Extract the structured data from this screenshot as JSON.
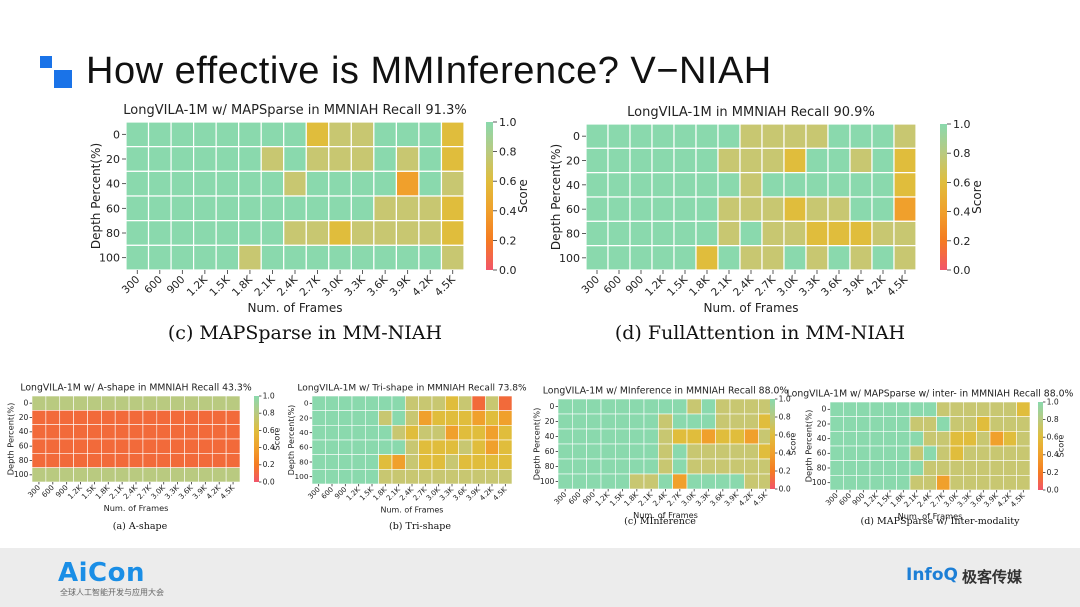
{
  "slide": {
    "title": "How effective is MMInference? V−NIAH",
    "footer_brand": "AiCon",
    "footer_brand_sub": "全球人工智能开发与应用大会",
    "footer_right_en": "InfoQ",
    "footer_right_cn": "极客传媒"
  },
  "colors": {
    "accent_blue": "#1a73e8",
    "green": "#8ad9ad",
    "olive": "#b9ca80",
    "khaki": "#c8c771",
    "gold": "#e0bd3c",
    "orange": "#f0a02c",
    "deep_orange": "#f57b22",
    "red_orange": "#f26a3a",
    "pink": "#f2556a",
    "red": "#f24d5a"
  },
  "chart_data": [
    {
      "type": "heatmap",
      "title": "LongVILA-1M w/ MAPSparse in MMNIAH Recall 91.3%",
      "caption": "(c) MAPSparse in MM-NIAH",
      "xlabel": "Num. of Frames",
      "ylabel": "Depth Percent(%)",
      "colorbar_label": "Score",
      "colorbar_ticks": [
        "1.0",
        "0.8",
        "0.6",
        "0.4",
        "0.2",
        "0.0"
      ],
      "vmin": 0,
      "vmax": 1,
      "x": [
        "300",
        "600",
        "900",
        "1.2K",
        "1.5K",
        "1.8K",
        "2.1K",
        "2.4K",
        "2.7K",
        "3.0K",
        "3.3K",
        "3.6K",
        "3.9K",
        "4.2K",
        "4.5K"
      ],
      "y": [
        "0",
        "20",
        "40",
        "60",
        "80",
        "100"
      ],
      "values": [
        [
          1,
          1,
          1,
          1,
          1,
          1,
          1,
          1,
          0.5,
          0.7,
          0.7,
          1,
          1,
          1,
          0.5
        ],
        [
          1,
          1,
          1,
          1,
          1,
          1,
          0.7,
          1,
          0.7,
          0.7,
          0.7,
          1,
          0.7,
          1,
          0.5
        ],
        [
          1,
          1,
          1,
          1,
          1,
          1,
          1,
          0.7,
          1,
          1,
          1,
          1,
          0.35,
          1,
          0.7
        ],
        [
          1,
          1,
          1,
          1,
          1,
          1,
          1,
          1,
          1,
          1,
          1,
          0.7,
          0.7,
          0.7,
          0.5
        ],
        [
          1,
          1,
          1,
          1,
          1,
          1,
          1,
          0.7,
          0.7,
          0.5,
          0.7,
          0.7,
          0.7,
          0.7,
          0.5
        ],
        [
          1,
          1,
          1,
          1,
          1,
          0.7,
          1,
          1,
          1,
          1,
          1,
          1,
          1,
          1,
          0.7
        ]
      ]
    },
    {
      "type": "heatmap",
      "title": "LongVILA-1M in MMNIAH Recall 90.9%",
      "caption": "(d) FullAttention in MM-NIAH",
      "xlabel": "Num. of Frames",
      "ylabel": "Depth Percent(%)",
      "colorbar_label": "Score",
      "colorbar_ticks": [
        "1.0",
        "0.8",
        "0.6",
        "0.4",
        "0.2",
        "0.0"
      ],
      "vmin": 0,
      "vmax": 1,
      "x": [
        "300",
        "600",
        "900",
        "1.2K",
        "1.5K",
        "1.8K",
        "2.1K",
        "2.4K",
        "2.7K",
        "3.0K",
        "3.3K",
        "3.6K",
        "3.9K",
        "4.2K",
        "4.5K"
      ],
      "y": [
        "0",
        "20",
        "40",
        "60",
        "80",
        "100"
      ],
      "values": [
        [
          1,
          1,
          1,
          1,
          1,
          1,
          1,
          0.7,
          0.7,
          0.7,
          0.7,
          1,
          1,
          1,
          0.7
        ],
        [
          1,
          1,
          1,
          1,
          1,
          1,
          0.7,
          0.7,
          0.7,
          0.5,
          1,
          1,
          0.7,
          1,
          0.5
        ],
        [
          1,
          1,
          1,
          1,
          1,
          1,
          1,
          0.7,
          1,
          1,
          1,
          1,
          1,
          1,
          0.5
        ],
        [
          1,
          1,
          1,
          1,
          1,
          1,
          0.7,
          0.7,
          0.7,
          0.5,
          0.7,
          0.7,
          1,
          1,
          0.35
        ],
        [
          1,
          1,
          1,
          1,
          1,
          1,
          0.7,
          1,
          0.7,
          0.7,
          0.5,
          0.5,
          0.5,
          0.7,
          0.7
        ],
        [
          1,
          1,
          1,
          1,
          1,
          0.5,
          1,
          0.7,
          0.7,
          1,
          0.7,
          1,
          0.7,
          1,
          0.7
        ]
      ]
    },
    {
      "type": "heatmap",
      "title": "LongVILA-1M w/ A-shape in MMNIAH Recall 43.3%",
      "caption": "(a) A-shape",
      "xlabel": "Num. of Frames",
      "ylabel": "Depth Percent(%)",
      "colorbar_label": "Score",
      "colorbar_ticks": [
        "1.0",
        "0.8",
        "0.6",
        "0.4",
        "0.2",
        "0.0"
      ],
      "vmin": 0,
      "vmax": 1,
      "x": [
        "300",
        "600",
        "900",
        "1.2K",
        "1.5K",
        "1.8K",
        "2.1K",
        "2.4K",
        "2.7K",
        "3.0K",
        "3.3K",
        "3.6K",
        "3.9K",
        "4.2K",
        "4.5K"
      ],
      "y": [
        "0",
        "20",
        "40",
        "60",
        "80",
        "100"
      ],
      "values": [
        [
          0.8,
          0.8,
          0.8,
          0.8,
          0.8,
          0.8,
          0.8,
          0.8,
          0.8,
          0.8,
          0.8,
          0.8,
          0.8,
          0.8,
          0.8
        ],
        [
          0.15,
          0.15,
          0.15,
          0.15,
          0.15,
          0.15,
          0.15,
          0.15,
          0.15,
          0.15,
          0.15,
          0.15,
          0.15,
          0.15,
          0.15
        ],
        [
          0.15,
          0.15,
          0.15,
          0.15,
          0.15,
          0.15,
          0.15,
          0.15,
          0.15,
          0.15,
          0.15,
          0.15,
          0.15,
          0.15,
          0.15
        ],
        [
          0.15,
          0.15,
          0.15,
          0.15,
          0.15,
          0.15,
          0.15,
          0.15,
          0.15,
          0.15,
          0.15,
          0.15,
          0.15,
          0.15,
          0.15
        ],
        [
          0.15,
          0.15,
          0.15,
          0.15,
          0.15,
          0.15,
          0.15,
          0.15,
          0.15,
          0.15,
          0.15,
          0.15,
          0.15,
          0.15,
          0.15
        ],
        [
          0.8,
          0.8,
          0.8,
          0.8,
          0.8,
          0.8,
          0.8,
          0.8,
          0.8,
          0.8,
          0.8,
          0.8,
          0.8,
          0.8,
          0.8
        ]
      ]
    },
    {
      "type": "heatmap",
      "title": "LongVILA-1M w/ Tri-shape in MMNIAH Recall 73.8%",
      "caption": "(b) Tri-shape",
      "xlabel": "Num. of Frames",
      "ylabel": "Depth Percent(%)",
      "colorbar_label": "Score",
      "colorbar_ticks": [
        "1.0",
        "0.8",
        "0.6",
        "0.4",
        "0.2",
        "0.0"
      ],
      "vmin": 0,
      "vmax": 1,
      "x": [
        "300",
        "600",
        "900",
        "1.2K",
        "1.5K",
        "1.8K",
        "2.1K",
        "2.4K",
        "2.7K",
        "3.0K",
        "3.3K",
        "3.6K",
        "3.9K",
        "4.2K",
        "4.5K"
      ],
      "y": [
        "0",
        "20",
        "40",
        "60",
        "80",
        "100"
      ],
      "values": [
        [
          1,
          1,
          1,
          1,
          1,
          1,
          1,
          0.7,
          0.7,
          0.7,
          0.5,
          0.7,
          0.15,
          0.7,
          0.15
        ],
        [
          1,
          1,
          1,
          1,
          1,
          0.7,
          1,
          0.7,
          0.35,
          0.5,
          0.5,
          0.5,
          0.35,
          0.5,
          0.35
        ],
        [
          1,
          1,
          1,
          1,
          1,
          1,
          0.7,
          0.5,
          0.7,
          0.7,
          0.35,
          0.5,
          0.5,
          0.35,
          0.5
        ],
        [
          1,
          1,
          1,
          1,
          1,
          1,
          1,
          0.7,
          0.5,
          0.5,
          0.5,
          0.7,
          0.5,
          0.35,
          0.5
        ],
        [
          1,
          1,
          1,
          1,
          1,
          0.5,
          0.35,
          0.7,
          0.5,
          0.5,
          0.7,
          0.5,
          0.5,
          0.5,
          0.5
        ],
        [
          1,
          1,
          1,
          1,
          1,
          0.7,
          0.7,
          0.7,
          0.7,
          0.7,
          0.7,
          0.7,
          0.7,
          0.7,
          0.7
        ]
      ]
    },
    {
      "type": "heatmap",
      "title": "LongVILA-1M w/ MInference in MMNIAH Recall 88.0%",
      "caption": "(c) MInference",
      "xlabel": "Num. of Frames",
      "ylabel": "Depth Percent(%)",
      "colorbar_label": "Score",
      "colorbar_ticks": [
        "1.0",
        "0.8",
        "0.6",
        "0.4",
        "0.2",
        "0.0"
      ],
      "vmin": 0,
      "vmax": 1,
      "x": [
        "300",
        "600",
        "900",
        "1.2K",
        "1.5K",
        "1.8K",
        "2.1K",
        "2.4K",
        "2.7K",
        "3.0K",
        "3.3K",
        "3.6K",
        "3.9K",
        "4.2K",
        "4.5K"
      ],
      "y": [
        "0",
        "20",
        "40",
        "60",
        "80",
        "100"
      ],
      "values": [
        [
          1,
          1,
          1,
          1,
          1,
          1,
          1,
          1,
          1,
          0.7,
          1,
          0.7,
          0.7,
          0.7,
          0.7
        ],
        [
          1,
          1,
          1,
          1,
          1,
          1,
          1,
          0.7,
          1,
          1,
          1,
          0.7,
          0.7,
          0.7,
          0.5
        ],
        [
          1,
          1,
          1,
          1,
          1,
          1,
          1,
          0.7,
          0.5,
          0.5,
          0.35,
          0.5,
          0.5,
          0.35,
          0.7
        ],
        [
          1,
          1,
          1,
          1,
          1,
          1,
          1,
          0.7,
          1,
          0.7,
          0.7,
          0.7,
          0.7,
          0.7,
          0.5
        ],
        [
          1,
          1,
          1,
          1,
          1,
          1,
          1,
          0.7,
          1,
          0.7,
          0.7,
          0.7,
          0.7,
          0.7,
          0.7
        ],
        [
          1,
          1,
          1,
          1,
          1,
          0.7,
          0.7,
          1,
          0.35,
          1,
          1,
          1,
          1,
          0.7,
          0.7
        ]
      ]
    },
    {
      "type": "heatmap",
      "title": "LongVILA-1M w/ MAPSparse w/ inter- in MMNIAH Recall 88.0%",
      "caption": "(d) MAPSparse w/ Inter-modality",
      "xlabel": "Num. of Frames",
      "ylabel": "Depth Percent(%)",
      "colorbar_label": "Score",
      "colorbar_ticks": [
        "1.0",
        "0.8",
        "0.6",
        "0.4",
        "0.2",
        "0.0"
      ],
      "vmin": 0,
      "vmax": 1,
      "x": [
        "300",
        "600",
        "900",
        "1.2K",
        "1.5K",
        "1.8K",
        "2.1K",
        "2.4K",
        "2.7K",
        "3.0K",
        "3.3K",
        "3.6K",
        "3.9K",
        "4.2K",
        "4.5K"
      ],
      "y": [
        "0",
        "20",
        "40",
        "60",
        "80",
        "100"
      ],
      "values": [
        [
          1,
          1,
          1,
          1,
          1,
          1,
          1,
          1,
          0.7,
          0.7,
          0.7,
          0.7,
          0.7,
          0.7,
          0.5
        ],
        [
          1,
          1,
          1,
          1,
          1,
          1,
          0.7,
          0.7,
          1,
          0.7,
          0.7,
          0.5,
          0.7,
          0.7,
          0.7
        ],
        [
          1,
          1,
          1,
          1,
          1,
          1,
          1,
          0.7,
          0.7,
          0.5,
          0.5,
          0.7,
          0.35,
          0.5,
          0.7
        ],
        [
          1,
          1,
          1,
          1,
          1,
          1,
          0.7,
          1,
          0.7,
          0.5,
          0.7,
          0.7,
          0.7,
          0.7,
          0.7
        ],
        [
          1,
          1,
          1,
          1,
          1,
          1,
          1,
          0.7,
          0.7,
          0.7,
          0.7,
          0.7,
          0.7,
          0.7,
          0.7
        ],
        [
          1,
          1,
          1,
          1,
          1,
          1,
          0.7,
          0.7,
          0.35,
          0.7,
          0.7,
          0.7,
          0.7,
          0.7,
          0.7
        ]
      ]
    }
  ]
}
